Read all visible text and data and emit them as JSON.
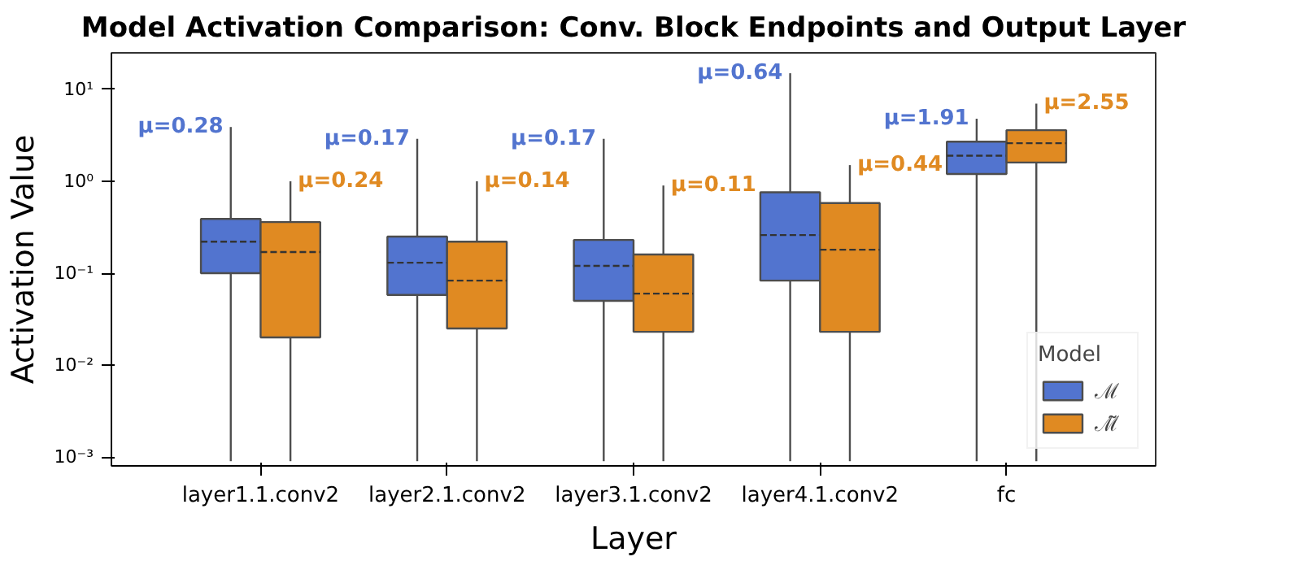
{
  "chart_data": {
    "type": "box",
    "title": "Model Activation Comparison: Conv. Block Endpoints and Output Layer",
    "xlabel": "Layer",
    "ylabel": "Activation Value",
    "legend_title": "Model",
    "legend": "bottom right",
    "log": "y",
    "grid": false,
    "categories": [
      "layer1.1.conv2",
      "layer2.1.conv2",
      "layer3.1.conv2",
      "layer4.1.conv2",
      "fc"
    ],
    "ylim": [
      0.0008,
      25
    ],
    "yticks": [
      {
        "value": 0.001,
        "label": "10⁻³"
      },
      {
        "value": 0.01,
        "label": "10⁻²"
      },
      {
        "value": 0.1,
        "label": "10⁻¹"
      },
      {
        "value": 1,
        "label": "10⁰"
      },
      {
        "value": 10,
        "label": "10¹"
      }
    ],
    "series": [
      {
        "name": "ℳ",
        "color": "#5274cf",
        "boxes": [
          {
            "low": 0.0009,
            "q1": 0.1,
            "median": 0.22,
            "q3": 0.39,
            "high": 3.9
          },
          {
            "low": 0.0009,
            "q1": 0.058,
            "median": 0.13,
            "q3": 0.25,
            "high": 2.9
          },
          {
            "low": 0.0009,
            "q1": 0.05,
            "median": 0.12,
            "q3": 0.23,
            "high": 2.9
          },
          {
            "low": 0.0009,
            "q1": 0.083,
            "median": 0.26,
            "q3": 0.76,
            "high": 15
          },
          {
            "low": 0.0009,
            "q1": 1.2,
            "median": 1.9,
            "q3": 2.7,
            "high": 4.8
          }
        ]
      },
      {
        "name": "ℳ̃",
        "color": "#e08a22",
        "boxes": [
          {
            "low": 0.0009,
            "q1": 0.02,
            "median": 0.17,
            "q3": 0.36,
            "high": 1.0
          },
          {
            "low": 0.0009,
            "q1": 0.025,
            "median": 0.083,
            "q3": 0.22,
            "high": 1.0
          },
          {
            "low": 0.0009,
            "q1": 0.023,
            "median": 0.06,
            "q3": 0.16,
            "high": 0.9
          },
          {
            "low": 0.0009,
            "q1": 0.023,
            "median": 0.18,
            "q3": 0.58,
            "high": 1.5
          },
          {
            "low": 0.0009,
            "q1": 1.6,
            "median": 2.6,
            "q3": 3.6,
            "high": 7.0
          }
        ]
      }
    ],
    "annotations": [
      "μ=0.28",
      "μ=0.24",
      "μ=0.17",
      "μ=0.14",
      "μ=0.17",
      "μ=0.11",
      "μ=0.64",
      "μ=0.44",
      "μ=1.91",
      "μ=2.55"
    ]
  }
}
